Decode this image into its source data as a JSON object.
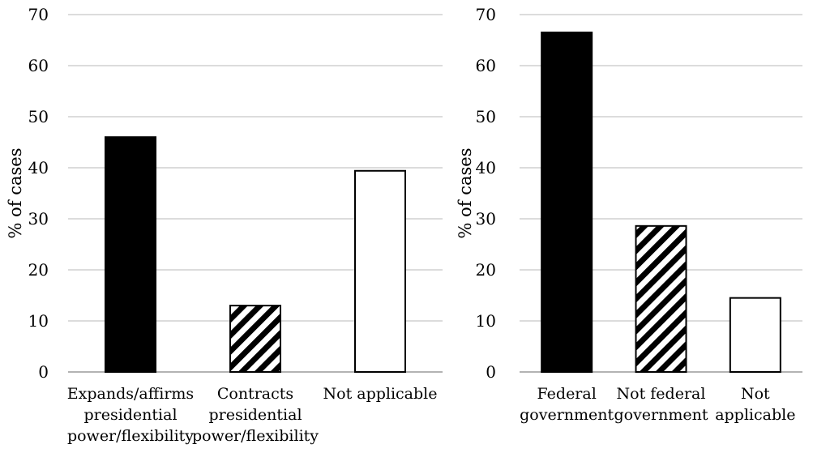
{
  "colors": {
    "solid": "#000000",
    "hatch": "#000000",
    "open": "#ffffff",
    "grid": "#c8c8c8"
  },
  "chart_data": [
    {
      "type": "bar",
      "ylabel": "% of cases",
      "ylim": [
        0,
        70
      ],
      "yticks": [
        "0",
        "10",
        "20",
        "30",
        "40",
        "50",
        "60",
        "70"
      ],
      "grid": true,
      "categories": [
        [
          "Expands/affirms",
          "presidential",
          "power/flexibility"
        ],
        [
          "Contracts",
          "presidential",
          "power/flexibility"
        ],
        [
          "Not applicable"
        ]
      ],
      "values": [
        46,
        13,
        39.4
      ],
      "fills": [
        "solid",
        "hatch",
        "open"
      ]
    },
    {
      "type": "bar",
      "ylabel": "% of cases",
      "ylim": [
        0,
        70
      ],
      "yticks": [
        "0",
        "10",
        "20",
        "30",
        "40",
        "50",
        "60",
        "70"
      ],
      "grid": true,
      "categories": [
        [
          "Federal",
          "government"
        ],
        [
          "Not federal",
          "government"
        ],
        [
          "Not",
          "applicable"
        ]
      ],
      "values": [
        66.5,
        28.6,
        14.5
      ],
      "fills": [
        "solid",
        "hatch",
        "open"
      ]
    }
  ]
}
